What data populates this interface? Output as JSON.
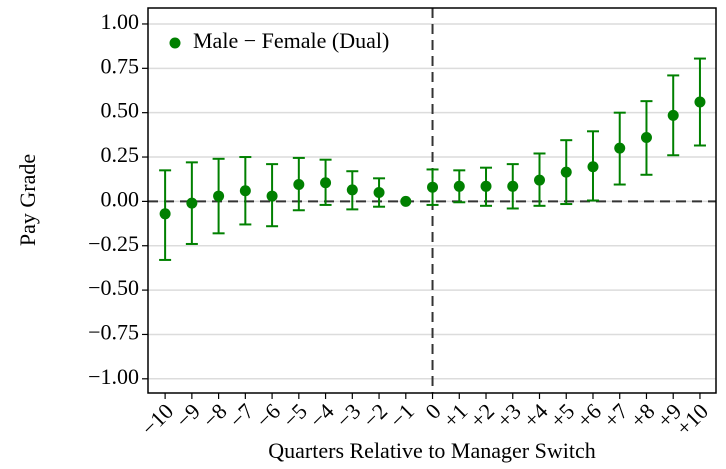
{
  "chart_data": {
    "type": "errorbar",
    "xlabel": "Quarters Relative to Manager Switch",
    "ylabel": "Pay Grade",
    "x": [
      -10,
      -9,
      -8,
      -7,
      -6,
      -5,
      -4,
      -3,
      -2,
      -1,
      0,
      1,
      2,
      3,
      4,
      5,
      6,
      7,
      8,
      9,
      10
    ],
    "series": [
      {
        "name": "Male − Female (Dual)",
        "color": "#008000",
        "values": [
          -0.07,
          -0.01,
          0.03,
          0.06,
          0.03,
          0.095,
          0.105,
          0.065,
          0.05,
          0,
          0.08,
          0.085,
          0.085,
          0.085,
          0.12,
          0.165,
          0.195,
          0.3,
          0.36,
          0.485,
          0.56
        ],
        "ci_low": [
          -0.33,
          -0.24,
          -0.18,
          -0.13,
          -0.14,
          -0.05,
          -0.02,
          -0.045,
          -0.03,
          null,
          -0.02,
          -0.005,
          -0.025,
          -0.04,
          -0.025,
          -0.015,
          0.005,
          0.095,
          0.15,
          0.26,
          0.315
        ],
        "ci_high": [
          0.175,
          0.22,
          0.24,
          0.25,
          0.21,
          0.245,
          0.235,
          0.17,
          0.13,
          null,
          0.18,
          0.175,
          0.19,
          0.21,
          0.27,
          0.345,
          0.395,
          0.5,
          0.565,
          0.71,
          0.805
        ]
      }
    ],
    "xlim": [
      -10.64,
      10.6
    ],
    "ylim": [
      -1.08,
      1.09
    ],
    "xticks": [
      {
        "value": -10,
        "label": "−10"
      },
      {
        "value": -9,
        "label": "−9"
      },
      {
        "value": -8,
        "label": "−8"
      },
      {
        "value": -7,
        "label": "−7"
      },
      {
        "value": -6,
        "label": "−6"
      },
      {
        "value": -5,
        "label": "−5"
      },
      {
        "value": -4,
        "label": "−4"
      },
      {
        "value": -3,
        "label": "−3"
      },
      {
        "value": -2,
        "label": "−2"
      },
      {
        "value": -1,
        "label": "−1"
      },
      0,
      {
        "value": 1,
        "label": "+1"
      },
      {
        "value": 2,
        "label": "+2"
      },
      {
        "value": 3,
        "label": "+3"
      },
      {
        "value": 4,
        "label": "+4"
      },
      {
        "value": 5,
        "label": "+5"
      },
      {
        "value": 6,
        "label": "+6"
      },
      {
        "value": 7,
        "label": "+7"
      },
      {
        "value": 8,
        "label": "+8"
      },
      {
        "value": 9,
        "label": "+9"
      },
      {
        "value": 10,
        "label": "+10"
      }
    ],
    "yticks": [
      {
        "value": -1,
        "label": "−1.00"
      },
      {
        "value": -0.75,
        "label": "−0.75"
      },
      {
        "value": -0.5,
        "label": "−0.50"
      },
      {
        "value": -0.25,
        "label": "−0.25"
      },
      {
        "value": 0,
        "label": "0.00"
      },
      {
        "value": 0.25,
        "label": "0.25"
      },
      {
        "value": 0.5,
        "label": "0.50"
      },
      {
        "value": 0.75,
        "label": "0.75"
      },
      {
        "value": 1,
        "label": "1.00"
      }
    ],
    "reference_lines": {
      "x": 0,
      "y": 0
    },
    "grid": true,
    "legend": "upper left"
  }
}
